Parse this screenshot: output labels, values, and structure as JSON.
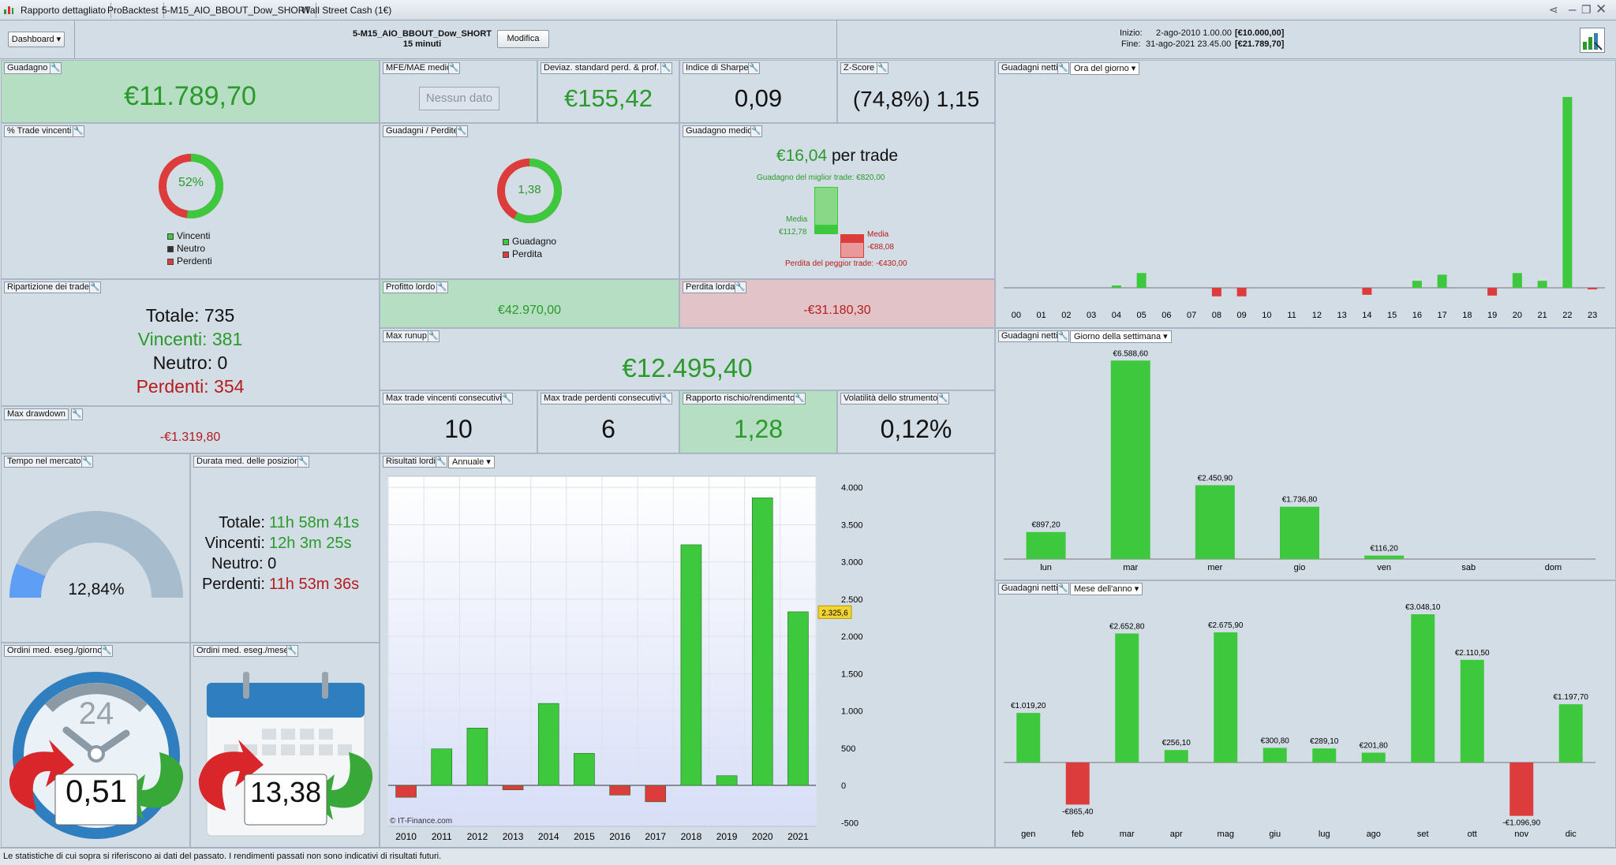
{
  "tabs": [
    "Rapporto dettagliato",
    "ProBacktest",
    "5-M15_AIO_BBOUT_Dow_SHORT",
    "Wall Street Cash (1€)"
  ],
  "header": {
    "dashboard": "Dashboard",
    "system": "5-M15_AIO_BBOUT_Dow_SHORT",
    "timeframe": "15 minuti",
    "modify": "Modifica",
    "start_label": "Inizio:",
    "start_date": "2-ago-2010 1.00.00",
    "start_cap": "[€10.000,00]",
    "end_label": "Fine:",
    "end_date": "31-ago-2021 23.45.00",
    "end_cap": "[€21.789,70]"
  },
  "gain": {
    "title": "Guadagno",
    "value": "€11.789,70"
  },
  "mfe": {
    "title": "MFE/MAE medio",
    "value": "Nessun dato"
  },
  "stddev": {
    "title": "Deviaz. standard perd. & prof.",
    "value": "€155,42"
  },
  "sharpe": {
    "title": "Indice di Sharpe",
    "value": "0,09"
  },
  "zscore": {
    "title": "Z-Score",
    "value": "(74,8%) 1,15"
  },
  "win_pct": {
    "title": "% Trade vincenti",
    "value": "52%",
    "fraction": 0.52,
    "legend": [
      "Vincenti",
      "Neutro",
      "Perdenti"
    ]
  },
  "gain_loss": {
    "title": "Guadagni / Perdite",
    "value": "1,38",
    "fraction": 0.58,
    "legend": [
      "Guadagno",
      "Perdita"
    ]
  },
  "avg_gain": {
    "title": "Guadagno medio",
    "value": "€16,04",
    "suffix": "per trade",
    "best": "Guadagno del miglior trade: €820,00",
    "media_l": "Media",
    "media_v": "€112,78",
    "media_r": "Media",
    "media_rv": "-€88,08",
    "worst": "Perdita del peggior trade: -€430,00"
  },
  "breakdown": {
    "title": "Ripartizione dei trade",
    "total": "Totale: 735",
    "win": "Vincenti: 381",
    "neutral": "Neutro: 0",
    "lose": "Perdenti: 354"
  },
  "gross_profit": {
    "title": "Profitto lordo",
    "value": "€42.970,00"
  },
  "gross_loss": {
    "title": "Perdita lorda",
    "value": "-€31.180,30"
  },
  "max_runup": {
    "title": "Max runup",
    "value": "€12.495,40"
  },
  "max_dd": {
    "title": "Max drawdown",
    "value": "-€1.319,80"
  },
  "max_consec_win": {
    "title": "Max trade vincenti consecutivi",
    "value": "10"
  },
  "max_consec_lose": {
    "title": "Max trade perdenti consecutivi",
    "value": "6"
  },
  "risk_reward": {
    "title": "Rapporto rischio/rendimento",
    "value": "1,28"
  },
  "volatility": {
    "title": "Volatilità dello strumento",
    "value": "0,12%"
  },
  "time_market": {
    "title": "Tempo nel mercato",
    "value": "12,84%",
    "fraction": 0.1284
  },
  "avg_duration": {
    "title": "Durata med. delle posizioni",
    "total_l": "Totale:",
    "total_v": "11h 58m 41s",
    "win_l": "Vincenti:",
    "win_v": "12h 3m 25s",
    "neu": "Neutro: 0",
    "lose_l": "Perdenti:",
    "lose_v": "11h 53m 36s"
  },
  "orders_day": {
    "title": "Ordini med. eseg./giorno",
    "value": "0,51",
    "dial": "24"
  },
  "orders_month": {
    "title": "Ordini med. eseg./mese",
    "value": "13,38"
  },
  "gross_results": {
    "title": "Risultati lordi",
    "dropdown": "Annuale",
    "current": "2.325,6",
    "watermark": "© IT-Finance.com"
  },
  "hour_panel": {
    "title": "Guadagni netti",
    "dropdown": "Ora del giorno"
  },
  "week_panel": {
    "title": "Guadagni netti",
    "dropdown": "Giorno della settimana"
  },
  "month_panel": {
    "title": "Guadagni netti",
    "dropdown": "Mese dell'anno"
  },
  "footer": "Le statistiche di cui sopra si riferiscono ai dati del passato. I rendimenti passati non sono indicativi di risultati futuri.",
  "colors": {
    "green": "#3ec83e",
    "red": "#dd3c3c",
    "text_green": "#2a9a2a",
    "text_red": "#b71c1c"
  },
  "chart_data": [
    {
      "type": "bar",
      "title": "Risultati lordi",
      "categories": [
        "2010",
        "2011",
        "2012",
        "2013",
        "2014",
        "2015",
        "2016",
        "2017",
        "2018",
        "2019",
        "2020",
        "2021"
      ],
      "values": [
        -160,
        490,
        770,
        -60,
        1100,
        430,
        -130,
        -220,
        3230,
        130,
        3860,
        2330
      ],
      "ylim": [
        -550,
        4150
      ],
      "yticks": [
        -500,
        0,
        500,
        1000,
        1500,
        2000,
        2500,
        3000,
        3500,
        4000
      ],
      "ytick_labels": [
        "-500",
        "0",
        "500",
        "1.000",
        "1.500",
        "2.000",
        "2.500",
        "3.000",
        "3.500",
        "4.000"
      ],
      "grid": true
    },
    {
      "type": "bar",
      "title": "Ora del giorno",
      "categories": [
        "00",
        "01",
        "02",
        "03",
        "04",
        "05",
        "06",
        "07",
        "08",
        "09",
        "10",
        "11",
        "12",
        "13",
        "14",
        "15",
        "16",
        "17",
        "18",
        "19",
        "20",
        "21",
        "22",
        "23"
      ],
      "values": [
        0,
        0,
        0,
        0,
        30,
        190,
        0,
        0,
        -110,
        -110,
        0,
        0,
        0,
        0,
        -90,
        0,
        90,
        170,
        0,
        -100,
        190,
        90,
        2460,
        -20
      ]
    },
    {
      "type": "bar",
      "title": "Giorno della settimana",
      "categories": [
        "lun",
        "mar",
        "mer",
        "gio",
        "ven",
        "sab",
        "dom"
      ],
      "values": [
        897.2,
        6588.6,
        2450.9,
        1736.8,
        116.2,
        0,
        0
      ],
      "labels": [
        "€897,20",
        "€6.588,60",
        "€2.450,90",
        "€1.736,80",
        "€116,20",
        "",
        ""
      ]
    },
    {
      "type": "bar",
      "title": "Mese dell'anno",
      "categories": [
        "gen",
        "feb",
        "mar",
        "apr",
        "mag",
        "giu",
        "lug",
        "ago",
        "set",
        "ott",
        "nov",
        "dic"
      ],
      "values": [
        1019.2,
        -865.4,
        2652.8,
        256.1,
        2675.9,
        300.8,
        289.1,
        201.8,
        3048.1,
        2110.5,
        -1096.9,
        1197.7
      ],
      "labels": [
        "€1.019,20",
        "-€865,40",
        "€2.652,80",
        "€256,10",
        "€2.675,90",
        "€300,80",
        "€289,10",
        "€201,80",
        "€3.048,10",
        "€2.110,50",
        "-€1.096,90",
        "€1.197,70"
      ]
    }
  ]
}
